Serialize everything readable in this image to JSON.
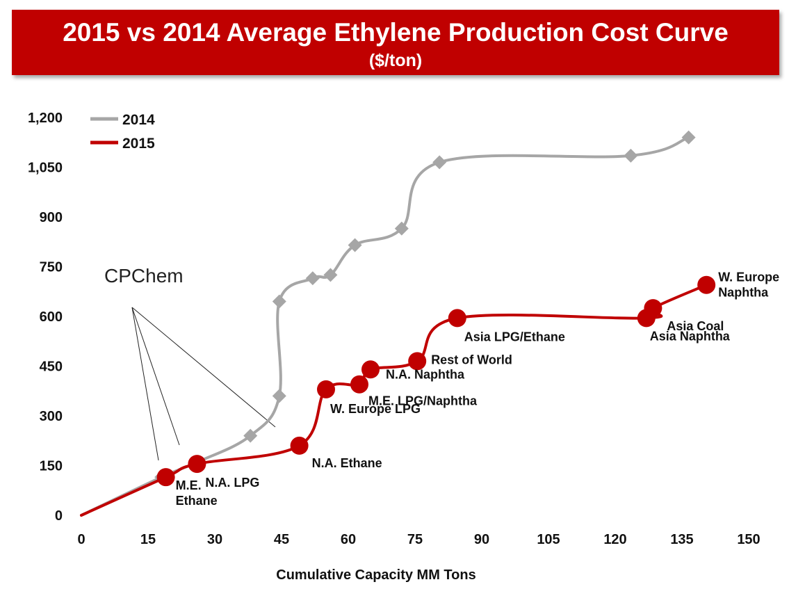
{
  "header": {
    "title": "2015 vs 2014 Average Ethylene Production Cost Curve",
    "subtitle": "($/ton)"
  },
  "chart_data": {
    "type": "line",
    "title": "2015 vs 2014 Average Ethylene Production Cost Curve",
    "subtitle": "($/ton)",
    "xlabel": "Cumulative Capacity MM Tons",
    "ylabel": "",
    "xlim": [
      0,
      150
    ],
    "ylim": [
      0,
      1200
    ],
    "xticks": [
      0,
      15,
      30,
      45,
      60,
      75,
      90,
      105,
      120,
      135,
      150
    ],
    "yticks": [
      0,
      150,
      300,
      450,
      600,
      750,
      900,
      1050,
      1200
    ],
    "ytick_labels": [
      "0",
      "150",
      "300",
      "450",
      "600",
      "750",
      "900",
      "1,050",
      "1,200"
    ],
    "grid": false,
    "legend_position": "top-left",
    "series": [
      {
        "name": "2014",
        "color": "#a6a6a6",
        "marker": "diamond",
        "x": [
          0,
          18,
          26,
          38,
          44.5,
          44.5,
          52,
          56,
          61.5,
          72,
          80.5,
          123.5,
          136.5
        ],
        "y": [
          0,
          115,
          160,
          240,
          360,
          645,
          715,
          725,
          815,
          865,
          1065,
          1085,
          1140
        ]
      },
      {
        "name": "2015",
        "color": "#c00000",
        "marker": "circle",
        "x": [
          0,
          19,
          26,
          49,
          55,
          62.5,
          65,
          75.5,
          84.5,
          127,
          128.5,
          140.5
        ],
        "y": [
          0,
          115,
          155,
          210,
          380,
          395,
          440,
          465,
          595,
          595,
          625,
          695
        ],
        "point_labels": [
          "",
          "M.E. Ethane",
          "N.A. LPG",
          "N.A. Ethane",
          "W. Europe LPG",
          "M.E. LPG/Naphtha",
          "N.A. Naphtha",
          "Rest of World",
          "Asia  LPG/Ethane",
          "Asia  Naphtha",
          "Asia  Coal",
          "W. Europe Naphtha"
        ]
      }
    ],
    "annotations": [
      {
        "text": "CPChem"
      }
    ]
  }
}
